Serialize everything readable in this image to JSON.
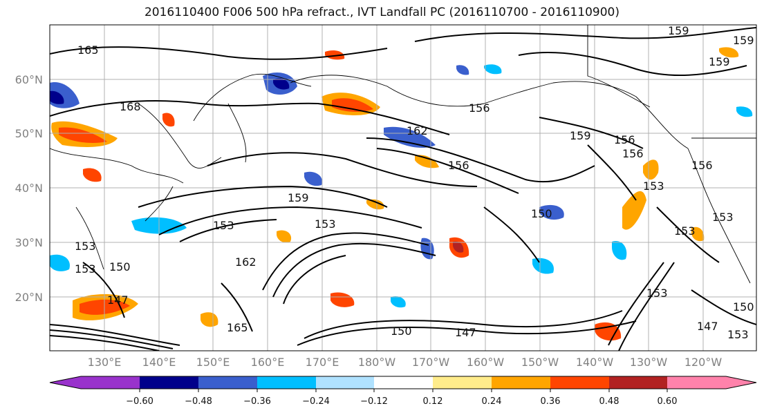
{
  "title": "2016110400 F006 500 hPa refract., IVT Landfall PC (2016110700 - 2016110900)",
  "lat_labels": [
    "60°N",
    "50°N",
    "40°N",
    "30°N",
    "20°N"
  ],
  "lon_labels": [
    "130°E",
    "140°E",
    "150°E",
    "160°E",
    "170°E",
    "180°W",
    "170°W",
    "160°W",
    "150°W",
    "140°W",
    "130°W",
    "120°W"
  ],
  "colorbar": {
    "ticks": [
      "−0.60",
      "−0.48",
      "−0.36",
      "−0.24",
      "−0.12",
      "0.12",
      "0.24",
      "0.36",
      "0.48",
      "0.60"
    ],
    "colors": [
      "#9932cc",
      "#00008b",
      "#3a5fcd",
      "#00bfff",
      "#b0e2ff",
      "#ffffff",
      "#ffec8b",
      "#ffa500",
      "#ff4500",
      "#b22222",
      "#ff82ab"
    ]
  },
  "contour_labels": [
    "165",
    "168",
    "162",
    "156",
    "159",
    "159",
    "159",
    "159",
    "156",
    "156",
    "153",
    "150",
    "153",
    "159",
    "153",
    "150",
    "147",
    "165",
    "162",
    "147",
    "150",
    "153",
    "153",
    "150",
    "147",
    "153",
    "156",
    "156",
    "153",
    "153",
    "153"
  ]
}
